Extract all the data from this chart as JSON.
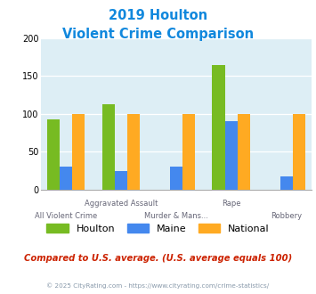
{
  "title_line1": "2019 Houlton",
  "title_line2": "Violent Crime Comparison",
  "houlton": [
    93,
    113,
    0,
    165,
    0
  ],
  "maine": [
    31,
    25,
    31,
    91,
    18
  ],
  "national": [
    100,
    100,
    100,
    100,
    100
  ],
  "houlton_color": "#77bb22",
  "maine_color": "#4488ee",
  "national_color": "#ffaa22",
  "ylim": [
    0,
    200
  ],
  "yticks": [
    0,
    50,
    100,
    150,
    200
  ],
  "title_color": "#1188dd",
  "bg_color": "#ddeef5",
  "subtitle_text": "Compared to U.S. average. (U.S. average equals 100)",
  "subtitle_color": "#cc2200",
  "footer_text": "© 2025 CityRating.com - https://www.cityrating.com/crime-statistics/",
  "footer_color": "#8899aa",
  "legend_labels": [
    "Houlton",
    "Maine",
    "National"
  ],
  "top_labels": {
    "1": "Aggravated Assault",
    "3": "Rape"
  },
  "bottom_labels": {
    "0": "All Violent Crime",
    "2": "Murder & Mans...",
    "4": "Robbery"
  }
}
